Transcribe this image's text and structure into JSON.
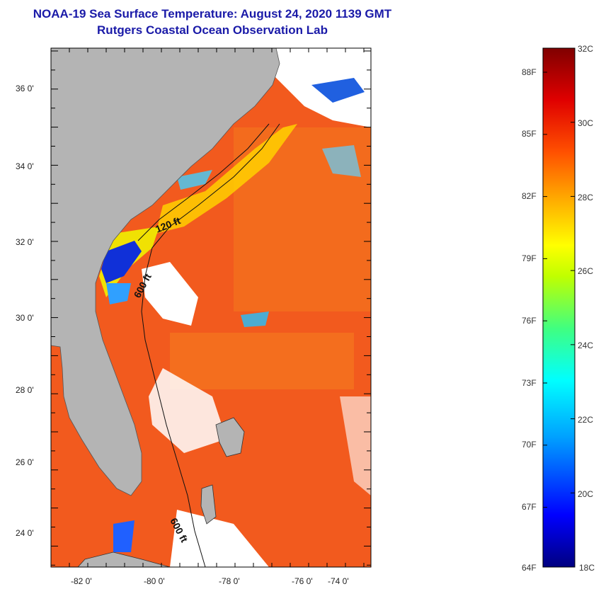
{
  "title": {
    "line1": "NOAA-19 Sea Surface Temperature:  August 24, 2020 1139 GMT",
    "line2": "Rutgers Coastal Ocean Observation Lab"
  },
  "map": {
    "lat_labels": [
      "36 0'",
      "34 0'",
      "32 0'",
      "30 0'",
      "28 0'",
      "26 0'",
      "24 0'"
    ],
    "lon_labels": [
      "-82 0'",
      "-80 0'",
      "-78 0'",
      "-76 0'",
      "-74 0'"
    ],
    "contour_labels": [
      "120 ft",
      "600 ft",
      "600 ft"
    ],
    "colors": {
      "land": "#b4b4b4",
      "ocean_warm": "#f25a1e",
      "cloud": "#ffffff"
    }
  },
  "colorbar": {
    "celsius_labels": [
      "32C",
      "30C",
      "28C",
      "26C",
      "24C",
      "22C",
      "20C",
      "18C"
    ],
    "fahrenheit_labels": [
      "88F",
      "85F",
      "82F",
      "79F",
      "76F",
      "73F",
      "70F",
      "67F",
      "64F"
    ],
    "range_c": [
      18,
      32
    ],
    "colors": [
      "#000080",
      "#0000ff",
      "#00a0ff",
      "#00ffff",
      "#40ff80",
      "#c0ff00",
      "#ffff00",
      "#ffa000",
      "#ff5000",
      "#e00000",
      "#800000"
    ]
  }
}
